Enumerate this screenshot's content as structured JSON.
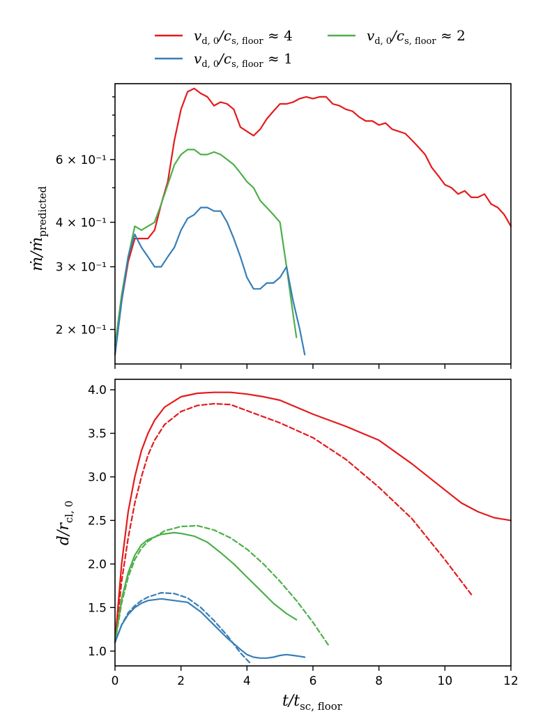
{
  "colors": {
    "red": "#e41a1c",
    "green": "#4daf4a",
    "blue": "#377eb8"
  },
  "legend": {
    "entries": [
      {
        "label": "v_{d,0}/c_{s,floor} ≈ 4",
        "color": "#e41a1c"
      },
      {
        "label": "v_{d,0}/c_{s,floor} ≈ 2",
        "color": "#4daf4a"
      },
      {
        "label": "v_{d,0}/c_{s,floor} ≈ 1",
        "color": "#377eb8"
      }
    ]
  },
  "chart_data": [
    {
      "type": "line",
      "panel": "top",
      "ylabel": "ṁ/ṁ_predicted",
      "yscale": "log",
      "xlim": [
        0,
        12
      ],
      "ylim": [
        0.16,
        0.98
      ],
      "yticks": [
        {
          "value": 0.2,
          "label": "2 × 10⁻¹"
        },
        {
          "value": 0.3,
          "label": "3 × 10⁻¹"
        },
        {
          "value": 0.4,
          "label": "4 × 10⁻¹"
        },
        {
          "value": 0.6,
          "label": "6 × 10⁻¹"
        }
      ],
      "series": [
        {
          "color": "#e41a1c",
          "x": [
            0,
            0.2,
            0.4,
            0.6,
            0.8,
            1.0,
            1.2,
            1.4,
            1.6,
            1.8,
            2.0,
            2.2,
            2.4,
            2.6,
            2.8,
            3.0,
            3.2,
            3.4,
            3.6,
            3.8,
            4.0,
            4.2,
            4.4,
            4.6,
            4.8,
            5.0,
            5.2,
            5.4,
            5.6,
            5.8,
            6.0,
            6.2,
            6.4,
            6.6,
            6.8,
            7.0,
            7.2,
            7.4,
            7.6,
            7.8,
            8.0,
            8.2,
            8.4,
            8.6,
            8.8,
            9.0,
            9.2,
            9.4,
            9.6,
            9.8,
            10.0,
            10.2,
            10.4,
            10.6,
            10.8,
            11.0,
            11.2,
            11.4,
            11.6,
            11.8,
            12.0
          ],
          "y": [
            0.17,
            0.24,
            0.31,
            0.36,
            0.36,
            0.36,
            0.38,
            0.45,
            0.52,
            0.68,
            0.83,
            0.93,
            0.95,
            0.92,
            0.9,
            0.85,
            0.87,
            0.86,
            0.83,
            0.74,
            0.72,
            0.7,
            0.73,
            0.78,
            0.82,
            0.86,
            0.86,
            0.87,
            0.89,
            0.9,
            0.89,
            0.9,
            0.9,
            0.86,
            0.85,
            0.83,
            0.82,
            0.79,
            0.77,
            0.77,
            0.75,
            0.76,
            0.73,
            0.72,
            0.71,
            0.68,
            0.65,
            0.62,
            0.57,
            0.54,
            0.51,
            0.5,
            0.48,
            0.49,
            0.47,
            0.47,
            0.48,
            0.45,
            0.44,
            0.42,
            0.39
          ]
        },
        {
          "color": "#4daf4a",
          "x": [
            0,
            0.2,
            0.4,
            0.6,
            0.8,
            1.0,
            1.2,
            1.4,
            1.6,
            1.8,
            2.0,
            2.2,
            2.4,
            2.6,
            2.8,
            3.0,
            3.2,
            3.4,
            3.6,
            3.8,
            4.0,
            4.2,
            4.4,
            4.6,
            4.8,
            5.0,
            5.2,
            5.4,
            5.5
          ],
          "y": [
            0.18,
            0.25,
            0.32,
            0.39,
            0.38,
            0.39,
            0.4,
            0.45,
            0.51,
            0.58,
            0.62,
            0.64,
            0.64,
            0.62,
            0.62,
            0.63,
            0.62,
            0.6,
            0.58,
            0.55,
            0.52,
            0.5,
            0.46,
            0.44,
            0.42,
            0.4,
            0.3,
            0.22,
            0.19
          ]
        },
        {
          "color": "#377eb8",
          "x": [
            0,
            0.2,
            0.4,
            0.6,
            0.8,
            1.0,
            1.2,
            1.4,
            1.6,
            1.8,
            2.0,
            2.2,
            2.4,
            2.6,
            2.8,
            3.0,
            3.2,
            3.4,
            3.6,
            3.8,
            4.0,
            4.2,
            4.4,
            4.6,
            4.8,
            5.0,
            5.2,
            5.4,
            5.6,
            5.75
          ],
          "y": [
            0.17,
            0.24,
            0.32,
            0.37,
            0.34,
            0.32,
            0.3,
            0.3,
            0.32,
            0.34,
            0.38,
            0.41,
            0.42,
            0.44,
            0.44,
            0.43,
            0.43,
            0.4,
            0.36,
            0.32,
            0.28,
            0.26,
            0.26,
            0.27,
            0.27,
            0.28,
            0.3,
            0.24,
            0.2,
            0.17
          ]
        }
      ]
    },
    {
      "type": "line",
      "panel": "bottom",
      "xlabel": "t/t_{sc,floor}",
      "ylabel": "d/r_{cl,0}",
      "xlim": [
        0,
        12
      ],
      "ylim": [
        0.83,
        4.12
      ],
      "xticks": [
        0,
        2,
        4,
        6,
        8,
        10,
        12
      ],
      "yticks": [
        1.0,
        1.5,
        2.0,
        2.5,
        3.0,
        3.5,
        4.0
      ],
      "series": [
        {
          "color": "#e41a1c",
          "style": "solid",
          "x": [
            0,
            0.2,
            0.4,
            0.6,
            0.8,
            1.0,
            1.2,
            1.5,
            2.0,
            2.5,
            3.0,
            3.5,
            4.0,
            4.5,
            5.0,
            6.0,
            7.0,
            8.0,
            9.0,
            10.0,
            10.5,
            11.0,
            11.5,
            12.0
          ],
          "y": [
            1.1,
            2.0,
            2.6,
            3.0,
            3.3,
            3.5,
            3.65,
            3.8,
            3.92,
            3.96,
            3.97,
            3.97,
            3.95,
            3.92,
            3.88,
            3.72,
            3.58,
            3.42,
            3.15,
            2.85,
            2.7,
            2.6,
            2.53,
            2.5
          ]
        },
        {
          "color": "#e41a1c",
          "style": "dashed",
          "x": [
            0,
            0.2,
            0.4,
            0.6,
            0.8,
            1.0,
            1.2,
            1.5,
            2.0,
            2.5,
            3.0,
            3.5,
            4.0,
            5.0,
            6.0,
            7.0,
            8.0,
            9.0,
            10.0,
            10.8
          ],
          "y": [
            1.1,
            1.8,
            2.3,
            2.7,
            3.0,
            3.25,
            3.42,
            3.6,
            3.75,
            3.82,
            3.84,
            3.83,
            3.76,
            3.62,
            3.45,
            3.2,
            2.88,
            2.52,
            2.05,
            1.65
          ]
        },
        {
          "color": "#4daf4a",
          "style": "solid",
          "x": [
            0,
            0.2,
            0.4,
            0.6,
            0.8,
            1.0,
            1.4,
            1.8,
            2.0,
            2.4,
            2.8,
            3.2,
            3.6,
            4.0,
            4.4,
            4.8,
            5.2,
            5.5
          ],
          "y": [
            1.1,
            1.6,
            1.9,
            2.1,
            2.22,
            2.28,
            2.34,
            2.36,
            2.35,
            2.32,
            2.25,
            2.13,
            2.0,
            1.85,
            1.7,
            1.55,
            1.43,
            1.36
          ]
        },
        {
          "color": "#4daf4a",
          "style": "dashed",
          "x": [
            0,
            0.2,
            0.4,
            0.6,
            0.8,
            1.0,
            1.5,
            2.0,
            2.5,
            3.0,
            3.5,
            4.0,
            4.5,
            5.0,
            5.5,
            6.0,
            6.5
          ],
          "y": [
            1.1,
            1.55,
            1.85,
            2.05,
            2.18,
            2.26,
            2.38,
            2.43,
            2.44,
            2.39,
            2.3,
            2.17,
            2.0,
            1.8,
            1.58,
            1.33,
            1.05
          ]
        },
        {
          "color": "#377eb8",
          "style": "solid",
          "x": [
            0,
            0.2,
            0.4,
            0.6,
            0.8,
            1.0,
            1.4,
            1.8,
            2.2,
            2.6,
            3.0,
            3.4,
            3.8,
            4.0,
            4.2,
            4.4,
            4.6,
            4.8,
            5.0,
            5.2,
            5.4,
            5.6,
            5.75
          ],
          "y": [
            1.1,
            1.3,
            1.42,
            1.5,
            1.55,
            1.58,
            1.6,
            1.58,
            1.56,
            1.45,
            1.3,
            1.15,
            1.02,
            0.96,
            0.93,
            0.92,
            0.92,
            0.93,
            0.95,
            0.96,
            0.95,
            0.94,
            0.93
          ]
        },
        {
          "color": "#377eb8",
          "style": "dashed",
          "x": [
            0,
            0.2,
            0.4,
            0.6,
            0.8,
            1.0,
            1.4,
            1.8,
            2.2,
            2.6,
            3.0,
            3.4,
            3.8,
            4.1
          ],
          "y": [
            1.1,
            1.3,
            1.44,
            1.52,
            1.58,
            1.62,
            1.67,
            1.66,
            1.61,
            1.5,
            1.35,
            1.18,
            0.98,
            0.86
          ]
        }
      ]
    }
  ]
}
